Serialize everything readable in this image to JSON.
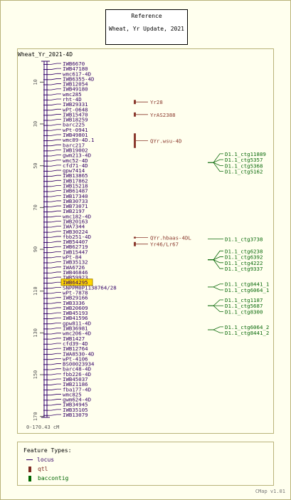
{
  "reference": {
    "line1": "Reference",
    "line2": "Wheat, Yr Update, 2021"
  },
  "map_title": "Wheat_Yr_2021-4D",
  "range_label": "0-170.43 cM",
  "footer": "CMap v1.01",
  "legend": {
    "title": "Feature Types:",
    "items": [
      {
        "label": "locus",
        "color": "#330066",
        "kind": "line"
      },
      {
        "label": "qtl",
        "color": "#7f2a1f",
        "kind": "box"
      },
      {
        "label": "baccontig",
        "color": "#006600",
        "kind": "box"
      }
    ]
  },
  "axis": {
    "min": 0,
    "max": 170.43,
    "ticks": [
      10,
      30,
      50,
      70,
      90,
      110,
      130,
      150,
      170
    ]
  },
  "colors": {
    "locus": "#330066",
    "qtl": "#8b3a2e",
    "contig": "#0a6a0a",
    "highlight": "#ffd700"
  },
  "loci": [
    "IWB6670",
    "IWB47180",
    "wmc617-4D",
    "IWB6355-4D",
    "IWB12054",
    "IWB49180",
    "wmc285",
    "rht-4D",
    "IWB29331",
    "wPt-0648",
    "IWB15470",
    "IWB18259",
    "barc225",
    "wPt-0941",
    "IWB49801",
    "wmc89-4D.1",
    "barc217",
    "IWB19002",
    "gwm213-4D",
    "wmc52-4D",
    "cfd71-4D",
    "gpw7414",
    "IWB13865",
    "IWB17862",
    "IWB15218",
    "IWB61487",
    "IWB17340",
    "IWB30733",
    "IWB73071",
    "IWB2197",
    "wmc182-4D",
    "IWB20163",
    "IWA7344",
    "IWB30224",
    "fbb251-4D",
    "IWB54407",
    "IWB62719",
    "IWB15447",
    "wPt-84",
    "IWB35132",
    "IWA6726",
    "IWB46846",
    "IWB59923",
    "IWB64295",
    "SNPPM0P1138764/28",
    "wPt-7878",
    "IWB29166",
    "IWB3336",
    "IWB20609",
    "IWB45193",
    "IWB41596",
    "gpw811-4D",
    "IWB36981",
    "wmc206-4D",
    "IWB1427",
    "cfd39-4D",
    "IWB12764",
    "IWA8530-4D",
    "wPt-4106",
    "BS00023934",
    "barc48-4D",
    "fbb226-4D",
    "IWB45037",
    "IWB21186",
    "fba177-4D",
    "wmc825",
    "gwm624-4D",
    "IWB34945",
    "IWB35105",
    "IWB13079"
  ],
  "highlighted_locus": "IWB64295",
  "qtls": [
    {
      "label": "Yr28",
      "top": 18.5,
      "bottom": 20.5
    },
    {
      "label": "YrAS2388",
      "top": 24.5,
      "bottom": 26.5
    },
    {
      "label": "QYr.wsu-4D",
      "top": 34.5,
      "bottom": 41.5
    },
    {
      "label": "QYr.hbaas-4DL",
      "top": 84.0,
      "bottom": 84.8
    },
    {
      "label": "Yr46/Lr67",
      "top": 86.5,
      "bottom": 88.5
    }
  ],
  "contig_groups": [
    {
      "pos": 48.5,
      "items": [
        "D1.1_ctg11889",
        "D1.1_ctg5357",
        "D1.1_ctg5368",
        "D1.1_ctg5162"
      ]
    },
    {
      "pos": 85.0,
      "items": [
        "D1.1_ctg3738"
      ]
    },
    {
      "pos": 95.0,
      "items": [
        "D1.1_ctg6238",
        "D1.1_ctg6392",
        "D1.1_ctg4222",
        "D1.1_ctg9337"
      ]
    },
    {
      "pos": 108.0,
      "items": [
        "D1.1_ctg8441_1",
        "D1.1_ctg6064_1"
      ]
    },
    {
      "pos": 117.0,
      "items": [
        "D1.1_ctg1187",
        "D1.1_ctg5687",
        "D1.1_ctg8300"
      ]
    },
    {
      "pos": 128.5,
      "items": [
        "D1.1_ctg6064_2",
        "D1.1_ctg8441_2"
      ]
    }
  ]
}
